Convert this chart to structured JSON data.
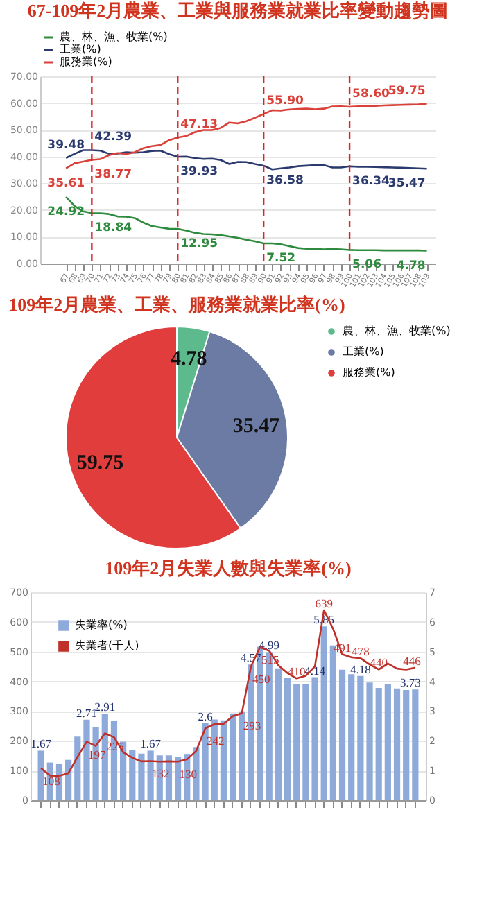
{
  "chart_data": [
    {
      "type": "line",
      "title": "67-109年2月農業、工業與服務業就業比率變動趨勢圖",
      "x": [
        67,
        68,
        69,
        70,
        71,
        72,
        73,
        74,
        75,
        76,
        77,
        78,
        79,
        80,
        81,
        82,
        83,
        84,
        85,
        86,
        87,
        88,
        89,
        90,
        91,
        92,
        93,
        94,
        95,
        96,
        97,
        98,
        99,
        100,
        101,
        102,
        103,
        104,
        105,
        106,
        107,
        108,
        109
      ],
      "xlim": [
        64,
        110
      ],
      "xticks": [
        67,
        68,
        69,
        70,
        71,
        72,
        73,
        74,
        75,
        76,
        77,
        78,
        79,
        80,
        81,
        82,
        83,
        84,
        85,
        86,
        87,
        88,
        89,
        90,
        91,
        92,
        93,
        94,
        95,
        96,
        97,
        98,
        99,
        100,
        101,
        102,
        103,
        104,
        105,
        106,
        107,
        108,
        109
      ],
      "ylim": [
        0,
        70
      ],
      "yticks": [
        {
          "value": 0,
          "label": "0.00"
        },
        {
          "value": 10,
          "label": "10.00"
        },
        {
          "value": 20,
          "label": "20.00"
        },
        {
          "value": 30,
          "label": "30.00"
        },
        {
          "value": 40,
          "label": "40.00"
        },
        {
          "value": 50,
          "label": "50.00"
        },
        {
          "value": 60,
          "label": "60.00"
        },
        {
          "value": 70,
          "label": "70.00"
        }
      ],
      "grid": "y",
      "legend": "top left",
      "line_style": "solid",
      "series": [
        {
          "name": "農、林、漁、牧業(%)",
          "color": "#2e8b3e",
          "values": [
            24.92,
            21.5,
            19.5,
            18.84,
            18.8,
            18.5,
            17.6,
            17.5,
            17.0,
            15.3,
            14.0,
            13.5,
            13.0,
            12.95,
            12.3,
            11.5,
            11.0,
            10.9,
            10.6,
            10.1,
            9.6,
            8.9,
            8.3,
            7.52,
            7.5,
            7.2,
            6.5,
            5.8,
            5.5,
            5.5,
            5.3,
            5.4,
            5.3,
            5.06,
            5.0,
            5.0,
            5.0,
            4.9,
            4.9,
            4.9,
            4.9,
            4.9,
            4.78
          ],
          "value_labels": [
            "24.92",
            null,
            null,
            "18.84",
            null,
            null,
            null,
            null,
            null,
            null,
            null,
            null,
            null,
            "12.95",
            null,
            null,
            null,
            null,
            null,
            null,
            null,
            null,
            null,
            "7.52",
            null,
            null,
            null,
            null,
            null,
            null,
            null,
            null,
            null,
            "5.06",
            null,
            null,
            null,
            null,
            null,
            null,
            null,
            null,
            "4.78"
          ]
        },
        {
          "name": "工業(%)",
          "color": "#2b3a6e",
          "values": [
            39.48,
            41.0,
            42.4,
            42.39,
            42.2,
            41.0,
            41.1,
            41.6,
            41.4,
            41.6,
            42.1,
            42.2,
            40.9,
            39.93,
            40.0,
            39.4,
            39.1,
            39.2,
            38.7,
            37.2,
            38.0,
            37.9,
            37.2,
            36.58,
            35.2,
            35.6,
            35.9,
            36.4,
            36.6,
            36.8,
            36.8,
            35.9,
            35.9,
            36.34,
            36.2,
            36.2,
            36.1,
            36.0,
            35.9,
            35.8,
            35.7,
            35.6,
            35.47
          ],
          "value_labels": [
            "39.48",
            null,
            null,
            "42.39",
            null,
            null,
            null,
            null,
            null,
            null,
            null,
            null,
            null,
            "39.93",
            null,
            null,
            null,
            null,
            null,
            null,
            null,
            null,
            null,
            "36.58",
            null,
            null,
            null,
            null,
            null,
            null,
            null,
            null,
            null,
            "36.34",
            null,
            null,
            null,
            null,
            null,
            null,
            null,
            null,
            "35.47"
          ]
        },
        {
          "name": "服務業(%)",
          "color": "#d9413a",
          "values": [
            35.61,
            37.5,
            38.1,
            38.77,
            39.0,
            40.5,
            41.3,
            40.9,
            41.6,
            43.1,
            43.9,
            44.3,
            46.1,
            47.13,
            47.7,
            49.1,
            49.9,
            49.9,
            50.7,
            52.7,
            52.4,
            53.2,
            54.5,
            55.9,
            57.3,
            57.2,
            57.6,
            57.8,
            57.9,
            57.7,
            57.9,
            58.7,
            58.8,
            58.6,
            58.8,
            58.8,
            58.9,
            59.1,
            59.2,
            59.3,
            59.4,
            59.5,
            59.75
          ],
          "value_labels": [
            "35.61",
            null,
            null,
            "38.77",
            null,
            null,
            null,
            null,
            null,
            null,
            null,
            null,
            null,
            "47.13",
            null,
            null,
            null,
            null,
            null,
            null,
            null,
            null,
            null,
            "55.90",
            null,
            null,
            null,
            null,
            null,
            null,
            null,
            null,
            null,
            "58.60",
            null,
            null,
            null,
            null,
            null,
            null,
            null,
            null,
            "59.75"
          ]
        }
      ],
      "ref_lines": [
        {
          "axis": "x",
          "value": 70,
          "color": "#d62728",
          "line_style": "dashed"
        },
        {
          "axis": "x",
          "value": 80,
          "color": "#d62728",
          "line_style": "dashed"
        },
        {
          "axis": "x",
          "value": 90,
          "color": "#d62728",
          "line_style": "dashed"
        },
        {
          "axis": "x",
          "value": 100,
          "color": "#d62728",
          "line_style": "dashed"
        }
      ]
    },
    {
      "type": "pie",
      "title": "109年2月農業、工業、服務業就業比率(%)",
      "categories": [
        "農、林、漁、牧業(%)",
        "工業(%)",
        "服務業(%)"
      ],
      "values": [
        4.78,
        35.47,
        59.75
      ],
      "colors": [
        "#5cba8c",
        "#6b7ba3",
        "#e23d3d"
      ],
      "data_labels": true,
      "legend": "right"
    },
    {
      "type": "bar",
      "title": "109年2月失業人數與失業率(%)",
      "categories": [
        null,
        null,
        null,
        null,
        null,
        null,
        null,
        null,
        null,
        null,
        null,
        null,
        null,
        null,
        null,
        null,
        null,
        null,
        null,
        null,
        null,
        null,
        null,
        null,
        null,
        null,
        null,
        null,
        null,
        null,
        null,
        null,
        null,
        null,
        null,
        null,
        null,
        null,
        null,
        null,
        null,
        null
      ],
      "ylim": [
        0,
        700
      ],
      "yticks": [
        0,
        100,
        200,
        300,
        400,
        500,
        600,
        700
      ],
      "y2lim": [
        0,
        7
      ],
      "y2ticks": [
        0,
        1,
        2,
        3,
        4,
        5,
        6,
        7
      ],
      "tick_labels": "y",
      "grid": "y",
      "legend": "top left",
      "series": [
        {
          "name": "失業率(%)",
          "type": "bar",
          "axis": "y2",
          "color": "#8eaadb",
          "values": [
            1.67,
            1.27,
            1.23,
            1.36,
            2.14,
            2.71,
            2.45,
            2.91,
            2.66,
            1.97,
            1.69,
            1.57,
            1.67,
            1.51,
            1.51,
            1.45,
            1.56,
            1.79,
            2.6,
            2.72,
            2.69,
            2.92,
            2.99,
            4.57,
            5.17,
            4.99,
            4.44,
            4.13,
            3.91,
            3.91,
            4.14,
            5.85,
            5.21,
            4.39,
            4.24,
            4.18,
            3.96,
            3.78,
            3.92,
            3.76,
            3.71,
            3.73
          ],
          "value_labels": [
            "1.67",
            null,
            null,
            null,
            null,
            "2.71",
            null,
            "2.91",
            null,
            null,
            null,
            null,
            "1.67",
            null,
            null,
            null,
            null,
            null,
            "2.6",
            null,
            null,
            null,
            null,
            "4.57",
            null,
            "4.99",
            null,
            null,
            null,
            null,
            "4.14",
            "5.85",
            null,
            null,
            null,
            "4.18",
            null,
            null,
            null,
            null,
            null,
            "3.73"
          ]
        },
        {
          "name": "失業者(千人)",
          "type": "line",
          "color": "#c0302a",
          "values": [
            108,
            83,
            82,
            91,
            146,
            197,
            183,
            225,
            212,
            162,
            143,
            131,
            132,
            130,
            131,
            130,
            138,
            166,
            242,
            256,
            257,
            283,
            293,
            450,
            515,
            503,
            454,
            428,
            410,
            419,
            450,
            639,
            577,
            491,
            481,
            478,
            457,
            440,
            460,
            443,
            440,
            446
          ],
          "value_labels": [
            "108",
            null,
            null,
            null,
            null,
            "197",
            null,
            "225",
            null,
            null,
            null,
            null,
            "132",
            null,
            null,
            "130",
            null,
            null,
            "242",
            null,
            null,
            null,
            "293",
            "450",
            "515",
            null,
            null,
            null,
            "410",
            null,
            null,
            "639",
            null,
            "491",
            null,
            "478",
            null,
            "440",
            null,
            null,
            null,
            "446"
          ]
        }
      ]
    }
  ]
}
